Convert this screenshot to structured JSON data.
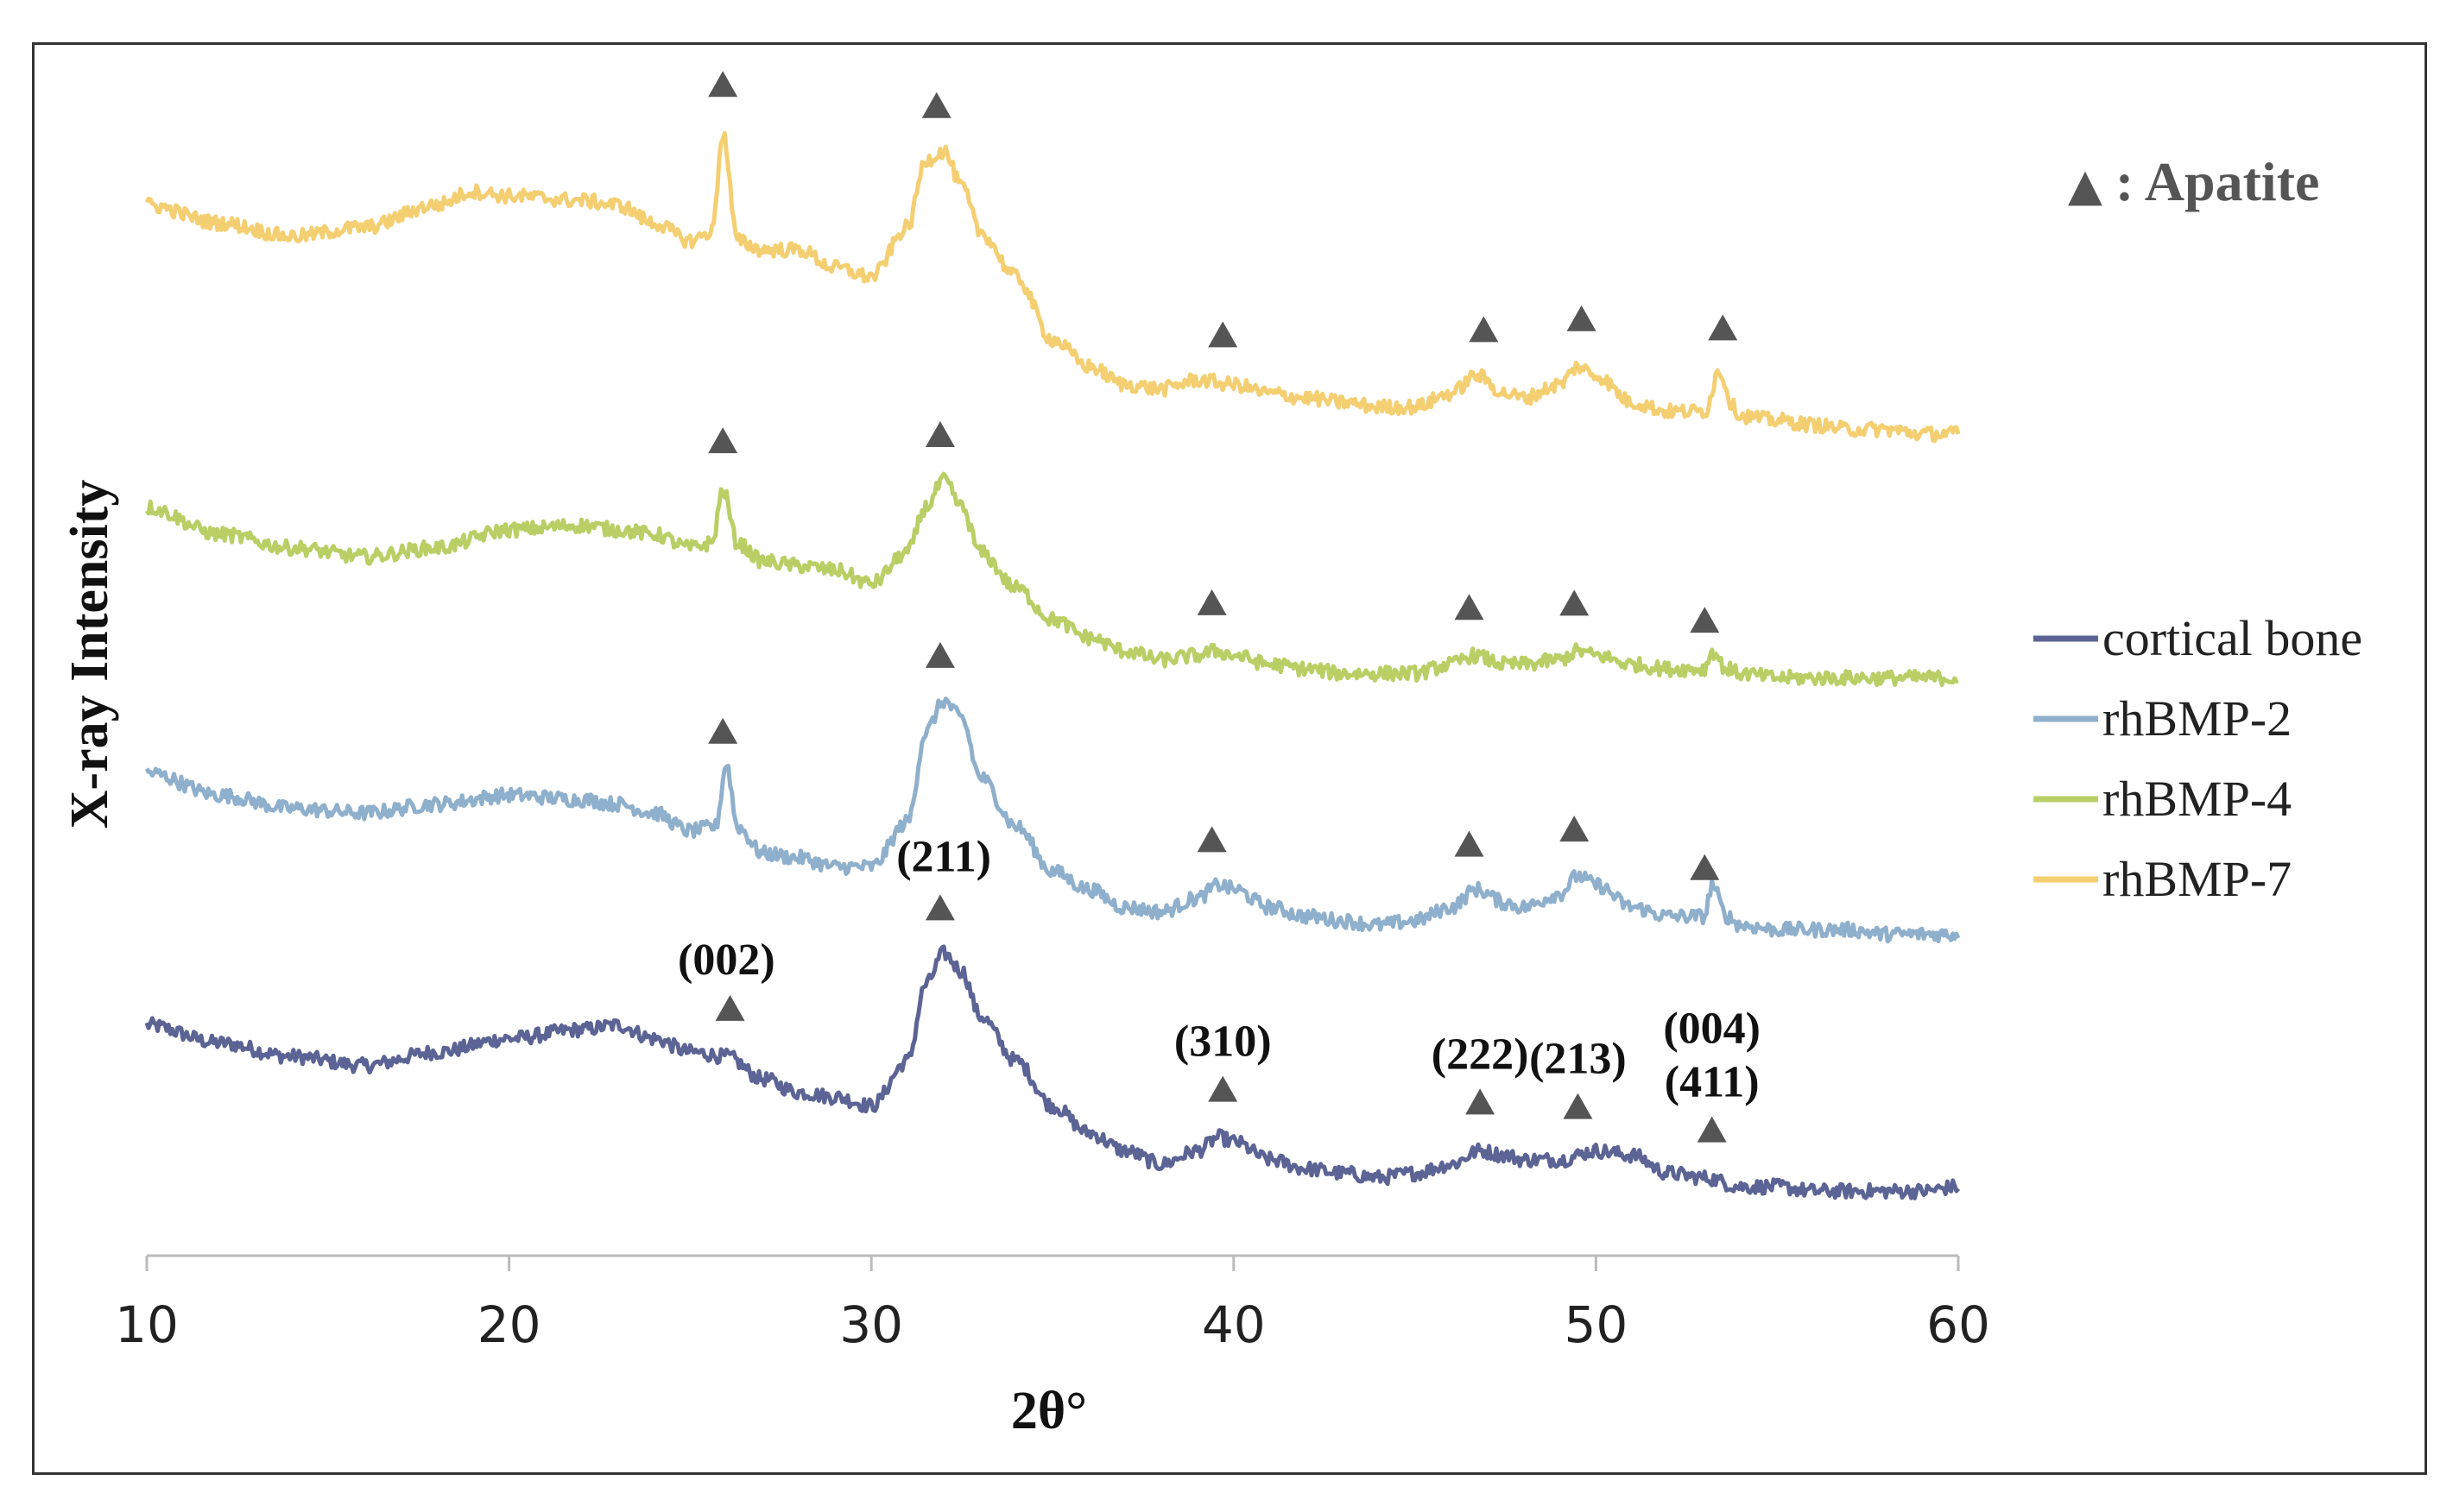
{
  "chart_data": {
    "type": "line",
    "title": "",
    "xlabel": "2θ°",
    "ylabel": "X-ray Intensity",
    "xlim": [
      10,
      60
    ],
    "xticks": [
      10,
      20,
      30,
      40,
      50,
      60
    ],
    "grid": false,
    "legend_position": "right",
    "marker_legend": {
      "symbol": "▲",
      "label": ": Apatite"
    },
    "peak_labels": [
      {
        "x": 26,
        "text": "(002)"
      },
      {
        "x": 32,
        "text": "(211)"
      },
      {
        "x": 39.7,
        "text": "(310)"
      },
      {
        "x": 46.8,
        "text": "(222)"
      },
      {
        "x": 49.5,
        "text": "(213)"
      },
      {
        "x": 53.2,
        "text": "(004)"
      },
      {
        "x": 53.2,
        "text": "(411)"
      }
    ],
    "series": [
      {
        "name": "cortical bone",
        "color": "#5b6494",
        "offset": 0,
        "points": [
          [
            10,
            36
          ],
          [
            12,
            32
          ],
          [
            14,
            29
          ],
          [
            16,
            27
          ],
          [
            18,
            30
          ],
          [
            20,
            33
          ],
          [
            22,
            35
          ],
          [
            23,
            36
          ],
          [
            24,
            33
          ],
          [
            25,
            30
          ],
          [
            26,
            29
          ],
          [
            27,
            24
          ],
          [
            28,
            21
          ],
          [
            29,
            20
          ],
          [
            30,
            18
          ],
          [
            31,
            28
          ],
          [
            31.5,
            45
          ],
          [
            32,
            52
          ],
          [
            32.5,
            48
          ],
          [
            33,
            38
          ],
          [
            34,
            28
          ],
          [
            35,
            18
          ],
          [
            36,
            12
          ],
          [
            37,
            8
          ],
          [
            38,
            5
          ],
          [
            39,
            8
          ],
          [
            39.6,
            11
          ],
          [
            40,
            10
          ],
          [
            41,
            6
          ],
          [
            42,
            4
          ],
          [
            43,
            3
          ],
          [
            44,
            2
          ],
          [
            45,
            3
          ],
          [
            46,
            5
          ],
          [
            46.8,
            8
          ],
          [
            47.5,
            7
          ],
          [
            48,
            6
          ],
          [
            49,
            6
          ],
          [
            50,
            8
          ],
          [
            51,
            7
          ],
          [
            52,
            3
          ],
          [
            53,
            2
          ],
          [
            54,
            0
          ],
          [
            55,
            0
          ],
          [
            56,
            -1
          ],
          [
            57,
            -1
          ],
          [
            58,
            -1
          ],
          [
            59,
            -1
          ],
          [
            60,
            0
          ]
        ],
        "peaks": [
          26.1,
          31.9,
          39.7,
          46.8,
          49.5,
          53.2
        ]
      },
      {
        "name": "rhBMP-2",
        "color": "#8fb0cc",
        "offset": 130,
        "points": [
          [
            10,
            36
          ],
          [
            12,
            31
          ],
          [
            14,
            28
          ],
          [
            16,
            27
          ],
          [
            18,
            29
          ],
          [
            20,
            31
          ],
          [
            22,
            30
          ],
          [
            23,
            29
          ],
          [
            24,
            27
          ],
          [
            25,
            23
          ],
          [
            25.7,
            24
          ],
          [
            26,
            38
          ],
          [
            26.3,
            24
          ],
          [
            27,
            18
          ],
          [
            28,
            17
          ],
          [
            29,
            15
          ],
          [
            30,
            15
          ],
          [
            31,
            25
          ],
          [
            31.5,
            45
          ],
          [
            32,
            52
          ],
          [
            32.5,
            48
          ],
          [
            33,
            35
          ],
          [
            34,
            24
          ],
          [
            35,
            14
          ],
          [
            36,
            10
          ],
          [
            37,
            6
          ],
          [
            38,
            5
          ],
          [
            39,
            8
          ],
          [
            39.6,
            11
          ],
          [
            40,
            10
          ],
          [
            41,
            6
          ],
          [
            42,
            4
          ],
          [
            43,
            3
          ],
          [
            44,
            2
          ],
          [
            45,
            3
          ],
          [
            46,
            6
          ],
          [
            46.7,
            10
          ],
          [
            47.5,
            7
          ],
          [
            48,
            6
          ],
          [
            49,
            9
          ],
          [
            49.5,
            13
          ],
          [
            50,
            11
          ],
          [
            51,
            6
          ],
          [
            52,
            4
          ],
          [
            53,
            4
          ],
          [
            53.2,
            11
          ],
          [
            53.6,
            4
          ],
          [
            54,
            2
          ],
          [
            55,
            1
          ],
          [
            56,
            1
          ],
          [
            57,
            1
          ],
          [
            58,
            0
          ],
          [
            59,
            0
          ],
          [
            60,
            0
          ]
        ],
        "peaks": [
          25.9,
          31.9,
          39.4,
          46.5,
          49.4,
          53.0
        ]
      },
      {
        "name": "rhBMP-4",
        "color": "#b9cf66",
        "offset": 262,
        "points": [
          [
            10,
            38
          ],
          [
            12,
            32
          ],
          [
            14,
            29
          ],
          [
            16,
            27
          ],
          [
            18,
            29
          ],
          [
            20,
            33
          ],
          [
            22,
            34
          ],
          [
            23,
            33
          ],
          [
            24,
            32
          ],
          [
            25,
            29
          ],
          [
            25.6,
            30
          ],
          [
            25.9,
            42
          ],
          [
            26.3,
            30
          ],
          [
            27,
            26
          ],
          [
            28,
            25
          ],
          [
            29,
            24
          ],
          [
            30,
            21
          ],
          [
            31,
            28
          ],
          [
            31.5,
            38
          ],
          [
            32,
            44
          ],
          [
            32.5,
            38
          ],
          [
            33,
            28
          ],
          [
            34,
            20
          ],
          [
            35,
            13
          ],
          [
            36,
            9
          ],
          [
            37,
            6
          ],
          [
            38,
            4
          ],
          [
            39,
            5
          ],
          [
            39.5,
            6
          ],
          [
            40,
            5
          ],
          [
            41,
            3
          ],
          [
            42,
            2
          ],
          [
            43,
            1
          ],
          [
            44,
            1
          ],
          [
            45,
            1
          ],
          [
            46,
            3
          ],
          [
            46.6,
            5
          ],
          [
            47.5,
            3
          ],
          [
            48,
            3
          ],
          [
            49,
            4
          ],
          [
            49.5,
            6
          ],
          [
            50,
            5
          ],
          [
            51,
            3
          ],
          [
            52,
            2
          ],
          [
            53,
            2
          ],
          [
            53.2,
            6
          ],
          [
            53.6,
            2
          ],
          [
            54,
            1
          ],
          [
            55,
            0
          ],
          [
            56,
            0
          ],
          [
            57,
            0
          ],
          [
            58,
            0
          ],
          [
            59,
            0
          ],
          [
            60,
            0
          ]
        ],
        "peaks": [
          25.9,
          31.9,
          39.4,
          46.5,
          49.4,
          53.0
        ]
      },
      {
        "name": "rhBMP-7",
        "color": "#f4cf72",
        "offset": 390,
        "points": [
          [
            10,
            50
          ],
          [
            12,
            46
          ],
          [
            14,
            43
          ],
          [
            16,
            45
          ],
          [
            18,
            50
          ],
          [
            19,
            53
          ],
          [
            20,
            52
          ],
          [
            22,
            51
          ],
          [
            23,
            50
          ],
          [
            24,
            46
          ],
          [
            25,
            42
          ],
          [
            25.6,
            44
          ],
          [
            25.9,
            66
          ],
          [
            26.3,
            42
          ],
          [
            27,
            40
          ],
          [
            28,
            40
          ],
          [
            29,
            36
          ],
          [
            30,
            34
          ],
          [
            31,
            45
          ],
          [
            31.5,
            60
          ],
          [
            32,
            62
          ],
          [
            32.5,
            54
          ],
          [
            33,
            44
          ],
          [
            34,
            34
          ],
          [
            35,
            20
          ],
          [
            36,
            14
          ],
          [
            37,
            10
          ],
          [
            38,
            9
          ],
          [
            39,
            11
          ],
          [
            40,
            10
          ],
          [
            41,
            8
          ],
          [
            42,
            7
          ],
          [
            43,
            6
          ],
          [
            44,
            5
          ],
          [
            45,
            5
          ],
          [
            46,
            8
          ],
          [
            46.7,
            12
          ],
          [
            47.5,
            8
          ],
          [
            48,
            7
          ],
          [
            49,
            10
          ],
          [
            49.5,
            14
          ],
          [
            50,
            12
          ],
          [
            51,
            6
          ],
          [
            52,
            4
          ],
          [
            53,
            4
          ],
          [
            53.4,
            13
          ],
          [
            53.8,
            5
          ],
          [
            54,
            3
          ],
          [
            55,
            2
          ],
          [
            56,
            1
          ],
          [
            57,
            0
          ],
          [
            58,
            0
          ],
          [
            59,
            -1
          ],
          [
            60,
            -1
          ]
        ],
        "peaks": [
          25.9,
          31.8,
          39.7,
          46.9,
          49.6,
          53.5
        ]
      }
    ]
  }
}
